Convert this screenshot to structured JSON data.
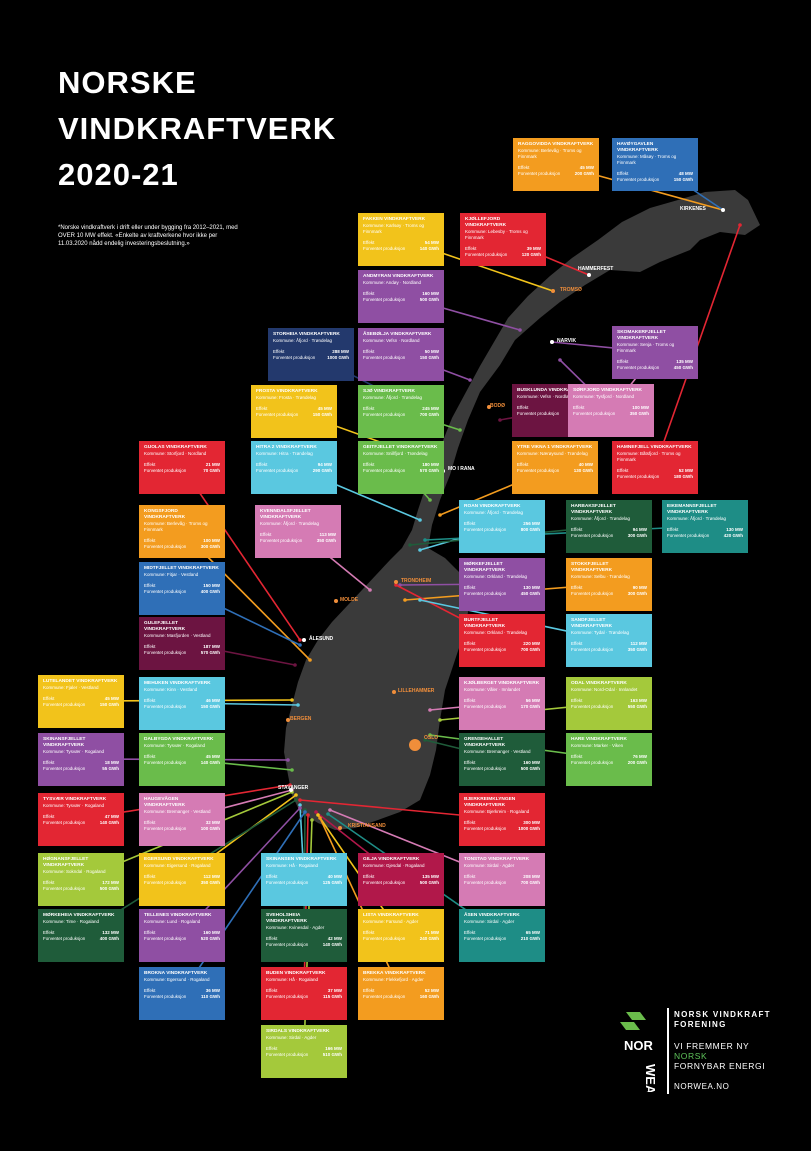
{
  "title": [
    "NORSKE",
    "VINDKRAFTVERK",
    "2020-21"
  ],
  "note": "*Norske vindkraftverk i drift eller under bygging fra 2012–2021, med OVER 10 MW effekt. «Enkelte av kraftverkene hvor ikke per 11.03.2020 nådd endelig investeringsbeslutning.»",
  "places": [
    {
      "name": "KIRKENES",
      "color": "white"
    },
    {
      "name": "HAMMERFEST",
      "color": "white"
    },
    {
      "name": "TROMSØ",
      "color": "orange"
    },
    {
      "name": "NARVIK",
      "color": "white"
    },
    {
      "name": "BODØ",
      "color": "orange"
    },
    {
      "name": "MO I RANA",
      "color": "white"
    },
    {
      "name": "TRONDHEIM",
      "color": "orange"
    },
    {
      "name": "MOLDE",
      "color": "orange"
    },
    {
      "name": "ÅLESUND",
      "color": "white"
    },
    {
      "name": "BERGEN",
      "color": "orange"
    },
    {
      "name": "LILLEHAMMER",
      "color": "orange"
    },
    {
      "name": "OSLO",
      "color": "orange"
    },
    {
      "name": "STAVANGER",
      "color": "white"
    },
    {
      "name": "KRISTIANSAND",
      "color": "orange"
    }
  ],
  "cards": [
    {
      "name": "RAGGOVIDDA VINDKRAFTVERK",
      "sub": "Kommune: Berlevåg · Troms og Finnmark",
      "k1": "Effekt",
      "v1": "45 MW",
      "k2": "Forventet produksjon",
      "v2": "200 GWh",
      "color": "#f39c1f"
    },
    {
      "name": "HAVØYGAVLEN VINDKRAFTVERK",
      "sub": "Kommune: Måsøy · Troms og Finnmark",
      "k1": "Effekt",
      "v1": "48 MW",
      "k2": "Forventet produksjon",
      "v2": "150 GWh",
      "color": "#2f6fb7"
    },
    {
      "name": "FAKKEN VINDKRAFTVERK",
      "sub": "Kommune: Karlsøy · Troms og Finnmark",
      "k1": "Effekt",
      "v1": "54 MW",
      "k2": "Forventet produksjon",
      "v2": "140 GWh",
      "color": "#f2c31b"
    },
    {
      "name": "KJØLLEFJORD VINDKRAFTVERK",
      "sub": "Kommune: Lebesby · Troms og Finnmark",
      "k1": "Effekt",
      "v1": "39 MW",
      "k2": "Forventet produksjon",
      "v2": "120 GWh",
      "color": "#e32633"
    },
    {
      "name": "ANDMYRAN VINDKRAFTVERK",
      "sub": "Kommune: Andøy · Nordland",
      "k1": "Effekt",
      "v1": "160 MW",
      "k2": "Forventet produksjon",
      "v2": "500 GWh",
      "color": "#8f4fa3"
    },
    {
      "name": "SKOMAKERFJELLET VINDKRAFTVERK",
      "sub": "Kommune: Senja · Troms og Finnmark",
      "k1": "Effekt",
      "v1": "135 MW",
      "k2": "Forventet produksjon",
      "v2": "450 GWh",
      "color": "#8f4fa3"
    },
    {
      "name": "STORHEIA VINDKRAFTVERK",
      "sub": "Kommune: Åfjord · Trøndelag",
      "k1": "Effekt",
      "v1": "288 MW",
      "k2": "Forventet produksjon",
      "v2": "1000 GWh",
      "color": "#23396d"
    },
    {
      "name": "ÅSEBØLJA VINDKRAFTVERK",
      "sub": "Kommune: Vefsn · Nordland",
      "k1": "Effekt",
      "v1": "50 MW",
      "k2": "Forventet produksjon",
      "v2": "150 GWh",
      "color": "#8f4fa3"
    },
    {
      "name": "NORDKJOSEN VINDKRAFTVERK",
      "sub": "Kommune: Tromsø · Troms og Finnmark",
      "k1": "Effekt",
      "v1": "43 MW",
      "k2": "Forventet produksjon",
      "v2": "140 GWh",
      "color": "#8f4fa3"
    },
    {
      "name": "FROSTA VINDKRAFTVERK",
      "sub": "Kommune: Frosta · Trøndelag",
      "k1": "Effekt",
      "v1": "45 MW",
      "k2": "Forventet produksjon",
      "v2": "150 GWh",
      "color": "#f2c31b"
    },
    {
      "name": "SJØ VINDKRAFTVERK",
      "sub": "Kommune: Åfjord · Trøndelag",
      "k1": "Effekt",
      "v1": "245 MW",
      "k2": "Forventet produksjon",
      "v2": "700 GWh",
      "color": "#6abc4b"
    },
    {
      "name": "BUSKLUNDA VINDKRAFTVERK",
      "sub": "Kommune: Vefsn · Nordland",
      "k1": "Effekt",
      "v1": "400 MW",
      "k2": "Forventet produksjon",
      "v2": "1400 GWh",
      "color": "#6c1441"
    },
    {
      "name": "SØRFJORD VINDKRAFTVERK",
      "sub": "Kommune: Tysfjord · Nordland",
      "k1": "Effekt",
      "v1": "100 MW",
      "k2": "Forventet produksjon",
      "v2": "350 GWh",
      "color": "#d57bb4"
    },
    {
      "name": "HITRA 2 VINDKRAFTVERK",
      "sub": "Kommune: Hitra · Trøndelag",
      "k1": "Effekt",
      "v1": "94 MW",
      "k2": "Forventet produksjon",
      "v2": "290 GWh",
      "color": "#5ac8e0"
    },
    {
      "name": "GEITFJELLET VINDKRAFTVERK",
      "sub": "Kommune: Snillfjord · Trøndelag",
      "k1": "Effekt",
      "v1": "180 MW",
      "k2": "Forventet produksjon",
      "v2": "570 GWh",
      "color": "#6abc4b"
    },
    {
      "name": "YTRE VIKNA 1 VINDKRAFTVERK",
      "sub": "Kommune: Nærøysund · Trøndelag",
      "k1": "Effekt",
      "v1": "40 MW",
      "k2": "Forventet produksjon",
      "v2": "130 GWh",
      "color": "#f39c1f"
    },
    {
      "name": "HAMNEFJELL VINDKRAFTVERK",
      "sub": "Kommune: Båtsfjord · Troms og Finnmark",
      "k1": "Effekt",
      "v1": "52 MW",
      "k2": "Forventet produksjon",
      "v2": "180 GWh",
      "color": "#e32633"
    },
    {
      "name": "GUOLAS VINDKRAFTVERK",
      "sub": "Kommune: Storfjord · Nordland",
      "k1": "Effekt",
      "v1": "21 MW",
      "k2": "Forventet produksjon",
      "v2": "70 GWh",
      "color": "#e32633"
    },
    {
      "name": "KVENNDALSFJELLET VINDKRAFTVERK",
      "sub": "Kommune: Åfjord · Trøndelag",
      "k1": "Effekt",
      "v1": "113 MW",
      "k2": "Forventet produksjon",
      "v2": "350 GWh",
      "color": "#d57bb4"
    },
    {
      "name": "KONGSFJORD VINDKRAFTVERK",
      "sub": "Kommune: Berlevåg · Troms og Finnmark",
      "k1": "Effekt",
      "v1": "100 MW",
      "k2": "Forventet produksjon",
      "v2": "300 GWh",
      "color": "#f39c1f"
    },
    {
      "name": "ROAN VINDKRAFTVERK",
      "sub": "Kommune: Åfjord · Trøndelag",
      "k1": "Effekt",
      "v1": "256 MW",
      "k2": "Forventet produksjon",
      "v2": "800 GWh",
      "color": "#5ac8e0"
    },
    {
      "name": "HARBAKSFJELLET VINDKRAFTVERK",
      "sub": "Kommune: Åfjord · Trøndelag",
      "k1": "Effekt",
      "v1": "94 MW",
      "k2": "Forventet produksjon",
      "v2": "300 GWh",
      "color": "#1f5c3a"
    },
    {
      "name": "EIKEMANNSFJELLET VINDKRAFTVERK",
      "sub": "Kommune: Åfjord · Trøndelag",
      "k1": "Effekt",
      "v1": "130 MW",
      "k2": "Forventet produksjon",
      "v2": "420 GWh",
      "color": "#1e8d86"
    },
    {
      "name": "MIDTFJELLET VINDKRAFTVERK",
      "sub": "Kommune: Fitjar · Vestland",
      "k1": "Effekt",
      "v1": "150 MW",
      "k2": "Forventet produksjon",
      "v2": "400 GWh",
      "color": "#2f6fb7"
    },
    {
      "name": "MØRKEFJELLET VINDKRAFTVERK",
      "sub": "Kommune: Orkland · Trøndelag",
      "k1": "Effekt",
      "v1": "130 MW",
      "k2": "Forventet produksjon",
      "v2": "450 GWh",
      "color": "#8f4fa3"
    },
    {
      "name": "STOKKFJELLET VINDKRAFTVERK",
      "sub": "Kommune: Selbu · Trøndelag",
      "k1": "Effekt",
      "v1": "90 MW",
      "k2": "Forventet produksjon",
      "v2": "300 GWh",
      "color": "#f39c1f"
    },
    {
      "name": "GULEFJELLET VINDKRAFTVERK",
      "sub": "Kommune: Masfjorden · Vestland",
      "k1": "Effekt",
      "v1": "187 MW",
      "k2": "Forventet produksjon",
      "v2": "570 GWh",
      "color": "#6c1441"
    },
    {
      "name": "BURTFJELLET VINDKRAFTVERK",
      "sub": "Kommune: Orkland · Trøndelag",
      "k1": "Effekt",
      "v1": "220 MW",
      "k2": "Forventet produksjon",
      "v2": "700 GWh",
      "color": "#e32633"
    },
    {
      "name": "SANDFJELLET VINDKRAFTVERK",
      "sub": "Kommune: Tydal · Trøndelag",
      "k1": "Effekt",
      "v1": "112 MW",
      "k2": "Forventet produksjon",
      "v2": "350 GWh",
      "color": "#5ac8e0"
    },
    {
      "name": "LUTELANDET VINDKRAFTVERK",
      "sub": "Kommune: Fjaler · Vestland",
      "k1": "Effekt",
      "v1": "45 MW",
      "k2": "Forventet produksjon",
      "v2": "150 GWh",
      "color": "#f2c31b"
    },
    {
      "name": "MEHUKEN VINDKRAFTVERK",
      "sub": "Kommune: Kinn · Vestland",
      "k1": "Effekt",
      "v1": "46 MW",
      "k2": "Forventet produksjon",
      "v2": "150 GWh",
      "color": "#5ac8e0"
    },
    {
      "name": "KJØLBERGET VINDKRAFTVERK",
      "sub": "Kommune: Våler · Innlandet",
      "k1": "Effekt",
      "v1": "56 MW",
      "k2": "Forventet produksjon",
      "v2": "170 GWh",
      "color": "#d57bb4"
    },
    {
      "name": "ODAL VINDKRAFTVERK",
      "sub": "Kommune: Nord-Odal · Innlandet",
      "k1": "Effekt",
      "v1": "163 MW",
      "k2": "Forventet produksjon",
      "v2": "550 GWh",
      "color": "#a4c93b"
    },
    {
      "name": "SKINANSFJELLET VINDKRAFTVERK",
      "sub": "Kommune: Tysvær · Rogaland",
      "k1": "Effekt",
      "v1": "18 MW",
      "k2": "Forventet produksjon",
      "v2": "55 GWh",
      "color": "#8f4fa3"
    },
    {
      "name": "DALBYGDA VINDKRAFTVERK",
      "sub": "Kommune: Tysvær · Rogaland",
      "k1": "Effekt",
      "v1": "45 MW",
      "k2": "Forventet produksjon",
      "v2": "140 GWh",
      "color": "#6abc4b"
    },
    {
      "name": "GRENSEHALLET VINDKRAFTVERK",
      "sub": "Kommune: Bremanger · Vestland",
      "k1": "Effekt",
      "v1": "160 MW",
      "k2": "Forventet produksjon",
      "v2": "500 GWh",
      "color": "#1f5c3a"
    },
    {
      "name": "HARE VINDKRAFTVERK",
      "sub": "Kommune: Marker · Viken",
      "k1": "Effekt",
      "v1": "76 MW",
      "k2": "Forventet produksjon",
      "v2": "200 GWh",
      "color": "#6abc4b"
    },
    {
      "name": "TYSVÆR VINDKRAFTVERK",
      "sub": "Kommune: Tysvær · Rogaland",
      "k1": "Effekt",
      "v1": "47 MW",
      "k2": "Forventet produksjon",
      "v2": "140 GWh",
      "color": "#e32633"
    },
    {
      "name": "HAUGEVÅGEN VINDKRAFTVERK",
      "sub": "Kommune: Bremanger · Vestland",
      "k1": "Effekt",
      "v1": "32 MW",
      "k2": "Forventet produksjon",
      "v2": "100 GWh",
      "color": "#d57bb4"
    },
    {
      "name": "BJERKREIMKLYNGEN VINDKRAFTVERK",
      "sub": "Kommune: Bjerkreim · Rogaland",
      "k1": "Effekt",
      "v1": "300 MW",
      "k2": "Forventet produksjon",
      "v2": "1000 GWh",
      "color": "#e32633"
    },
    {
      "name": "HØGNANSFJELLET VINDKRAFTVERK",
      "sub": "Kommune: Sokndal · Rogaland",
      "k1": "Effekt",
      "v1": "172 MW",
      "k2": "Forventet produksjon",
      "v2": "500 GWh",
      "color": "#a4c93b"
    },
    {
      "name": "EGERSUND VINDKRAFTVERK",
      "sub": "Kommune: Eigersund · Rogaland",
      "k1": "Effekt",
      "v1": "112 MW",
      "k2": "Forventet produksjon",
      "v2": "350 GWh",
      "color": "#f2c31b"
    },
    {
      "name": "SKINANSEN VINDKRAFTVERK",
      "sub": "Kommune: Hå · Rogaland",
      "k1": "Effekt",
      "v1": "40 MW",
      "k2": "Forventet produksjon",
      "v2": "125 GWh",
      "color": "#5ac8e0"
    },
    {
      "name": "GILJA VINDKRAFTVERK",
      "sub": "Kommune: Gjesdal · Rogaland",
      "k1": "Effekt",
      "v1": "135 MW",
      "k2": "Forventet produksjon",
      "v2": "500 GWh",
      "color": "#b1184a"
    },
    {
      "name": "TONSTAD VINDKRAFTVERK",
      "sub": "Kommune: Sirdal · Agder",
      "k1": "Effekt",
      "v1": "208 MW",
      "k2": "Forventet produksjon",
      "v2": "700 GWh",
      "color": "#d57bb4"
    },
    {
      "name": "MØRKEHEIA VINDKRAFTVERK",
      "sub": "Kommune: Time · Rogaland",
      "k1": "Effekt",
      "v1": "132 MW",
      "k2": "Forventet produksjon",
      "v2": "400 GWh",
      "color": "#1f5c3a"
    },
    {
      "name": "TELLENES VINDKRAFTVERK",
      "sub": "Kommune: Lund · Rogaland",
      "k1": "Effekt",
      "v1": "160 MW",
      "k2": "Forventet produksjon",
      "v2": "520 GWh",
      "color": "#8f4fa3"
    },
    {
      "name": "SVEHOLSHEIA VINDKRAFTVERK",
      "sub": "Kommune: Kvinesdal · Agder",
      "k1": "Effekt",
      "v1": "42 MW",
      "k2": "Forventet produksjon",
      "v2": "140 GWh",
      "color": "#1f5c3a"
    },
    {
      "name": "LISTA VINDKRAFTVERK",
      "sub": "Kommune: Farsund · Agder",
      "k1": "Effekt",
      "v1": "71 MW",
      "k2": "Forventet produksjon",
      "v2": "240 GWh",
      "color": "#f2c31b"
    },
    {
      "name": "ÅSEN VINDKRAFTVERK",
      "sub": "Kommune: Sirdal · Agder",
      "k1": "Effekt",
      "v1": "65 MW",
      "k2": "Forventet produksjon",
      "v2": "210 GWh",
      "color": "#1e8d86"
    },
    {
      "name": "BROKNA VINDKRAFTVERK",
      "sub": "Kommune: Egersund · Rogaland",
      "k1": "Effekt",
      "v1": "36 MW",
      "k2": "Forventet produksjon",
      "v2": "110 GWh",
      "color": "#2f6fb7"
    },
    {
      "name": "BUDEN VINDKRAFTVERK",
      "sub": "Kommune: Hå · Rogaland",
      "k1": "Effekt",
      "v1": "37 MW",
      "k2": "Forventet produksjon",
      "v2": "115 GWh",
      "color": "#e32633"
    },
    {
      "name": "BREKKA VINDKRAFTVERK",
      "sub": "Kommune: Flekkefjord · Agder",
      "k1": "Effekt",
      "v1": "52 MW",
      "k2": "Forventet produksjon",
      "v2": "160 GWh",
      "color": "#f39c1f"
    },
    {
      "name": "SIRDALS VINDKRAFTVERK",
      "sub": "Kommune: Sirdal · Agder",
      "k1": "Effekt",
      "v1": "166 MW",
      "k2": "Forventet produksjon",
      "v2": "510 GWh",
      "color": "#a4c93b"
    }
  ],
  "logo": {
    "mark": [
      "NOR",
      "WEA"
    ],
    "brand_a": "NORSK VINDKRAFT",
    "brand_b": "FORENING",
    "tag_a": "VI FREMMER NY",
    "tag_b": "NORSK",
    "tag_c": "FORNYBAR ENERGI",
    "web": "NORWEA.NO"
  }
}
